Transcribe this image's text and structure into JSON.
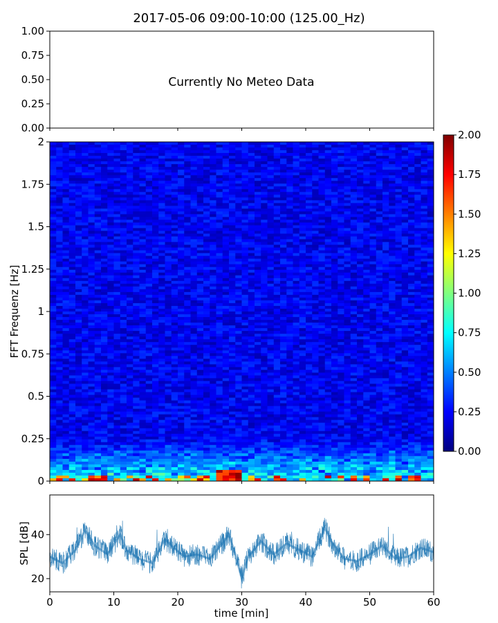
{
  "figure": {
    "title": "2017-05-06 09:00-10:00 (125.00_Hz)"
  },
  "meteo_panel": {
    "message": "Currently No Meteo Data",
    "yticks": [
      "0.00",
      "0.25",
      "0.50",
      "0.75",
      "1.00"
    ]
  },
  "chart_data": [
    {
      "type": "heatmap",
      "title": "",
      "ylabel": "FFT Frequenz [Hz]",
      "xlim": [
        0,
        60
      ],
      "ylim": [
        0,
        2
      ],
      "yticks": [
        "0",
        "0.25",
        "0.5",
        "0.75",
        "1",
        "1.25",
        "1.5",
        "1.75",
        "2"
      ],
      "colormap": "jet",
      "colorbar": {
        "range": [
          0,
          2
        ],
        "ticks": [
          "0.00",
          "0.25",
          "0.50",
          "0.75",
          "1.00",
          "1.25",
          "1.50",
          "1.75",
          "2.00"
        ],
        "stops": [
          "#00007f",
          "#0000ff",
          "#007fff",
          "#00ffff",
          "#7fff7f",
          "#ffff00",
          "#ff7f00",
          "#ff0000",
          "#7f0000"
        ]
      },
      "description_values": {
        "typical_level_above_0_25_Hz": 0.2,
        "low_frequency_band_0_to_0_25_Hz_level": 0.7,
        "peak_region_time_min": [
          26,
          30
        ],
        "peak_region_freq_Hz": [
          0,
          0.06
        ],
        "peak_level": 2.0
      }
    },
    {
      "type": "line",
      "title": "",
      "xlabel": "time [min]",
      "ylabel": "SPL [dB]",
      "xlim": [
        0,
        60
      ],
      "ylim": [
        14,
        58
      ],
      "xticks": [
        "0",
        "10",
        "20",
        "30",
        "40",
        "50",
        "60"
      ],
      "yticks": [
        "20",
        "40"
      ],
      "line_color": "#1f77b4",
      "series": [
        {
          "x": [
            0,
            2,
            4,
            5.5,
            7,
            9,
            11,
            12,
            14,
            16,
            18,
            19,
            21,
            23,
            25,
            27,
            28,
            29,
            30,
            31,
            33,
            35,
            37,
            39,
            41,
            43,
            44,
            46,
            48,
            50,
            52,
            54,
            56,
            58,
            60
          ],
          "values": [
            30,
            27,
            33,
            42,
            35,
            31,
            40,
            33,
            29,
            27,
            38,
            35,
            30,
            31,
            29,
            36,
            40,
            31,
            20,
            30,
            37,
            31,
            36,
            33,
            30,
            43,
            37,
            29,
            28,
            31,
            35,
            29,
            30,
            34,
            32
          ]
        }
      ]
    }
  ]
}
